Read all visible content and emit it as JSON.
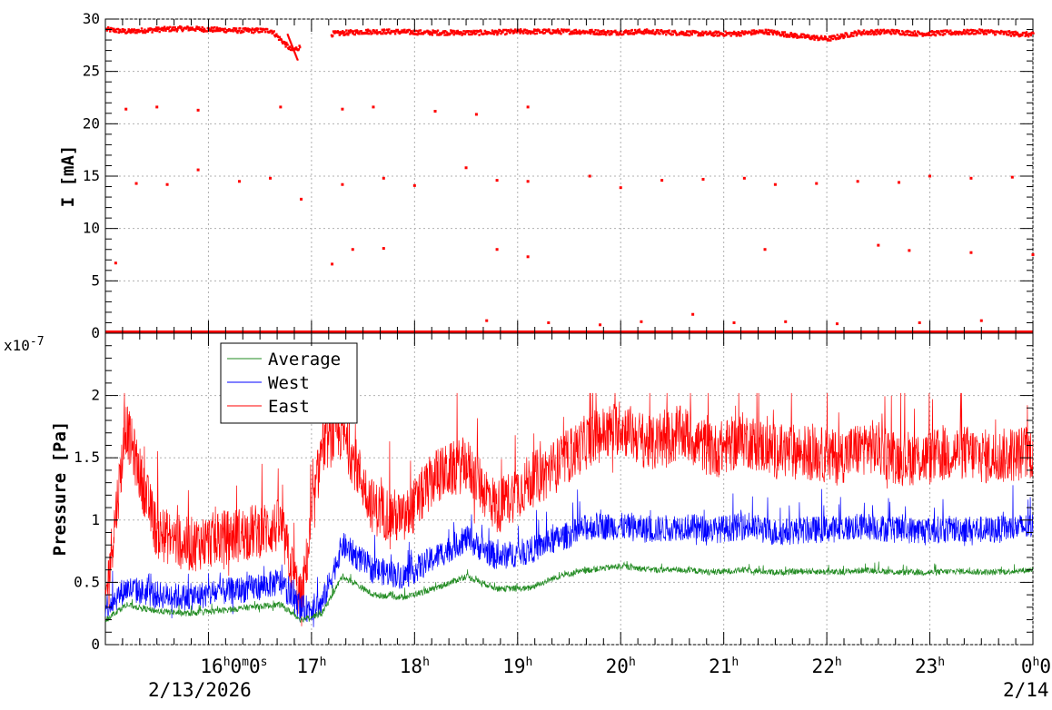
{
  "chart_data": [
    {
      "type": "scatter",
      "ylabel": "I [mA]",
      "ylim": [
        0,
        30
      ],
      "yticks": [
        0,
        5,
        10,
        15,
        20,
        25,
        30
      ],
      "xlim_hours": [
        15.0,
        24.0
      ],
      "grid": true,
      "series": [
        {
          "color": "#ff0000",
          "x_hours": [
            15.0,
            15.2,
            15.5,
            15.8,
            16.0,
            16.3,
            16.6,
            16.8,
            17.2,
            17.5,
            17.8,
            18.1,
            18.4,
            18.7,
            19.0,
            19.3,
            19.6,
            19.9,
            20.2,
            20.5,
            20.8,
            21.1,
            21.4,
            21.7,
            22.0,
            22.3,
            22.6,
            22.9,
            23.2,
            23.5,
            23.8,
            24.0
          ],
          "y": [
            29.0,
            28.8,
            29.0,
            29.1,
            29.0,
            28.9,
            28.9,
            27.0,
            28.6,
            28.8,
            28.8,
            28.7,
            28.7,
            28.7,
            28.8,
            28.8,
            28.8,
            28.7,
            28.8,
            28.7,
            28.6,
            28.6,
            28.8,
            28.4,
            28.1,
            28.7,
            28.8,
            28.6,
            28.7,
            28.8,
            28.6,
            28.5
          ]
        }
      ],
      "outliers": [
        {
          "x": 15.2,
          "y": 21.4
        },
        {
          "x": 15.5,
          "y": 21.6
        },
        {
          "x": 15.9,
          "y": 21.3
        },
        {
          "x": 16.7,
          "y": 21.6
        },
        {
          "x": 17.3,
          "y": 21.4
        },
        {
          "x": 17.6,
          "y": 21.6
        },
        {
          "x": 18.2,
          "y": 21.2
        },
        {
          "x": 18.6,
          "y": 20.9
        },
        {
          "x": 19.1,
          "y": 21.6
        },
        {
          "x": 15.3,
          "y": 14.3
        },
        {
          "x": 15.6,
          "y": 14.2
        },
        {
          "x": 15.9,
          "y": 15.6
        },
        {
          "x": 16.3,
          "y": 14.5
        },
        {
          "x": 16.6,
          "y": 14.8
        },
        {
          "x": 16.9,
          "y": 12.8
        },
        {
          "x": 17.3,
          "y": 14.2
        },
        {
          "x": 17.7,
          "y": 14.8
        },
        {
          "x": 18.0,
          "y": 14.1
        },
        {
          "x": 18.5,
          "y": 15.8
        },
        {
          "x": 18.8,
          "y": 14.6
        },
        {
          "x": 19.1,
          "y": 14.5
        },
        {
          "x": 19.7,
          "y": 15.0
        },
        {
          "x": 20.0,
          "y": 13.9
        },
        {
          "x": 20.4,
          "y": 14.6
        },
        {
          "x": 20.8,
          "y": 14.7
        },
        {
          "x": 21.2,
          "y": 14.8
        },
        {
          "x": 21.5,
          "y": 14.2
        },
        {
          "x": 21.9,
          "y": 14.3
        },
        {
          "x": 22.3,
          "y": 14.5
        },
        {
          "x": 22.7,
          "y": 14.4
        },
        {
          "x": 23.0,
          "y": 15.0
        },
        {
          "x": 23.4,
          "y": 14.8
        },
        {
          "x": 23.8,
          "y": 14.9
        },
        {
          "x": 15.1,
          "y": 6.7
        },
        {
          "x": 17.2,
          "y": 6.6
        },
        {
          "x": 17.4,
          "y": 8.0
        },
        {
          "x": 17.7,
          "y": 8.1
        },
        {
          "x": 18.8,
          "y": 8.0
        },
        {
          "x": 19.1,
          "y": 7.3
        },
        {
          "x": 21.4,
          "y": 8.0
        },
        {
          "x": 22.5,
          "y": 8.4
        },
        {
          "x": 22.8,
          "y": 7.9
        },
        {
          "x": 23.4,
          "y": 7.7
        },
        {
          "x": 24.0,
          "y": 7.5
        },
        {
          "x": 18.7,
          "y": 1.2
        },
        {
          "x": 19.3,
          "y": 1.0
        },
        {
          "x": 19.8,
          "y": 0.8
        },
        {
          "x": 20.2,
          "y": 1.1
        },
        {
          "x": 20.7,
          "y": 1.8
        },
        {
          "x": 21.1,
          "y": 1.0
        },
        {
          "x": 21.6,
          "y": 1.1
        },
        {
          "x": 22.1,
          "y": 0.9
        },
        {
          "x": 22.9,
          "y": 1.0
        },
        {
          "x": 23.5,
          "y": 1.2
        }
      ]
    },
    {
      "type": "line",
      "ylabel": "Pressure [Pa]",
      "exponent_label": "x10",
      "exponent_power": "-7",
      "ylim": [
        0,
        2.5
      ],
      "yticks": [
        0,
        0.5,
        1,
        1.5,
        2
      ],
      "xlim_hours": [
        15.0,
        24.0
      ],
      "grid": true,
      "legend": {
        "placement": "top-left"
      },
      "series": [
        {
          "name": "Average",
          "color": "#228b22",
          "x_hours": [
            15.0,
            15.2,
            15.5,
            15.8,
            16.1,
            16.4,
            16.7,
            16.9,
            17.1,
            17.3,
            17.6,
            17.9,
            18.2,
            18.5,
            18.8,
            19.1,
            19.4,
            19.7,
            20.0,
            20.3,
            20.6,
            20.9,
            21.2,
            21.5,
            21.8,
            22.1,
            22.4,
            22.7,
            23.0,
            23.3,
            23.6,
            24.0
          ],
          "y": [
            0.2,
            0.32,
            0.27,
            0.25,
            0.27,
            0.3,
            0.32,
            0.2,
            0.25,
            0.55,
            0.4,
            0.38,
            0.45,
            0.55,
            0.45,
            0.45,
            0.55,
            0.6,
            0.63,
            0.6,
            0.6,
            0.58,
            0.6,
            0.58,
            0.59,
            0.58,
            0.6,
            0.58,
            0.58,
            0.59,
            0.58,
            0.6
          ]
        },
        {
          "name": "West",
          "color": "#0000ff",
          "x_hours": [
            15.0,
            15.2,
            15.5,
            15.8,
            16.1,
            16.4,
            16.7,
            16.9,
            17.1,
            17.3,
            17.6,
            17.9,
            18.2,
            18.5,
            18.8,
            19.1,
            19.4,
            19.7,
            20.0,
            20.3,
            20.6,
            20.9,
            21.2,
            21.5,
            21.8,
            22.1,
            22.4,
            22.7,
            23.0,
            23.3,
            23.6,
            24.0
          ],
          "y": [
            0.3,
            0.45,
            0.4,
            0.38,
            0.42,
            0.45,
            0.5,
            0.28,
            0.32,
            0.8,
            0.6,
            0.55,
            0.7,
            0.85,
            0.7,
            0.75,
            0.85,
            0.95,
            0.95,
            0.92,
            0.95,
            0.92,
            0.95,
            0.9,
            0.92,
            0.93,
            0.95,
            0.92,
            0.92,
            0.93,
            0.92,
            0.95
          ]
        },
        {
          "name": "East",
          "color": "#ff0000",
          "x_hours": [
            15.0,
            15.2,
            15.5,
            15.8,
            16.1,
            16.4,
            16.7,
            16.9,
            17.1,
            17.3,
            17.6,
            17.9,
            18.2,
            18.5,
            18.8,
            19.1,
            19.4,
            19.7,
            20.0,
            20.3,
            20.6,
            20.9,
            21.2,
            21.5,
            21.8,
            22.1,
            22.4,
            22.7,
            23.0,
            23.3,
            23.6,
            24.0
          ],
          "y": [
            0.35,
            1.75,
            0.9,
            0.8,
            0.85,
            0.9,
            0.95,
            0.33,
            1.6,
            1.7,
            1.1,
            1.0,
            1.35,
            1.45,
            1.1,
            1.3,
            1.45,
            1.65,
            1.75,
            1.6,
            1.7,
            1.55,
            1.65,
            1.55,
            1.55,
            1.5,
            1.6,
            1.5,
            1.5,
            1.55,
            1.5,
            1.55
          ]
        }
      ]
    }
  ],
  "x_axis": {
    "ticks": [
      {
        "hour": 16,
        "label": "16",
        "suffix": "0",
        "suffix2": "0"
      },
      {
        "hour": 17,
        "label": "17"
      },
      {
        "hour": 18,
        "label": "18"
      },
      {
        "hour": 19,
        "label": "19"
      },
      {
        "hour": 20,
        "label": "20"
      },
      {
        "hour": 21,
        "label": "21"
      },
      {
        "hour": 22,
        "label": "22"
      },
      {
        "hour": 23,
        "label": "23"
      },
      {
        "hour": 24,
        "label": "0",
        "suffix": "0"
      }
    ],
    "sup_h": "h",
    "sup_m": "m",
    "sup_s": "s",
    "date_start": "2/13/2026",
    "date_end": "2/14"
  }
}
